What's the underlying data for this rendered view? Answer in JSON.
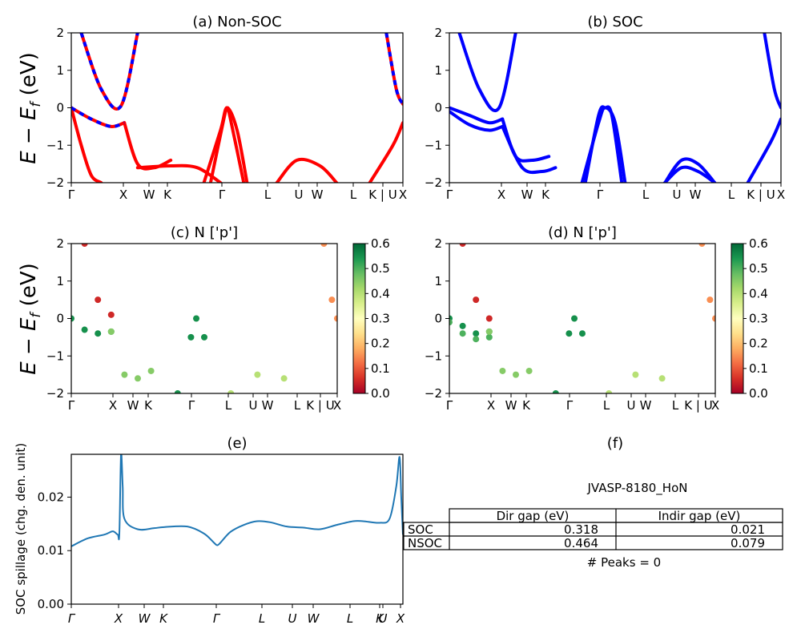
{
  "chart_data": [
    {
      "id": "a",
      "type": "line",
      "title": "(a) Non-SOC",
      "ylabel_html": "E − E_f (eV)",
      "ylabel": {
        "E": "E",
        "minus": "−",
        "sub": "f",
        "unit": "(eV)"
      },
      "ylim": [
        -2,
        2
      ],
      "yticks": [
        "2",
        "1",
        "0",
        "−1",
        "−2"
      ],
      "kpath": [
        "Γ",
        "X",
        "W",
        "K",
        "Γ",
        "L",
        "U",
        "W",
        "L",
        "K | U",
        "X"
      ],
      "series": [
        {
          "color": "#ff0000",
          "style": "solid",
          "bands": [
            {
              "x": [
                0.0,
                0.06,
                0.12,
                0.16
              ],
              "y": [
                0,
                -0.3,
                -0.5,
                -0.4
              ]
            },
            {
              "x": [
                0.16,
                0.2,
                0.25,
                0.3
              ],
              "y": [
                -0.4,
                -1.5,
                -1.6,
                -1.4
              ]
            },
            {
              "x": [
                0.0,
                0.03,
                0.06,
                0.09
              ],
              "y": [
                0,
                -1.0,
                -1.8,
                -2.0
              ]
            },
            {
              "x": [
                0.03,
                0.09,
                0.15,
                0.2
              ],
              "y": [
                2,
                0.5,
                0.05,
                2
              ]
            },
            {
              "x": [
                0.2,
                0.3,
                0.38,
                0.45
              ],
              "y": [
                -1.6,
                -1.55,
                -1.6,
                -2.0
              ]
            },
            {
              "x": [
                0.4,
                0.45,
                0.47,
                0.5,
                0.53
              ],
              "y": [
                -2.0,
                -0.6,
                0.0,
                -0.6,
                -2.0
              ]
            },
            {
              "x": [
                0.42,
                0.46,
                0.47,
                0.48,
                0.52
              ],
              "y": [
                -2,
                -0.3,
                0.0,
                -0.3,
                -2
              ]
            },
            {
              "x": [
                0.62,
                0.68,
                0.75,
                0.8
              ],
              "y": [
                -2,
                -1.4,
                -1.55,
                -2
              ]
            },
            {
              "x": [
                0.9,
                0.97,
                1.0
              ],
              "y": [
                -2,
                -1.0,
                -0.4
              ]
            },
            {
              "x": [
                0.95,
                0.98,
                1.0
              ],
              "y": [
                2,
                0.5,
                0.1
              ]
            }
          ]
        },
        {
          "color": "#0000ff",
          "style": "dashed",
          "bands": [
            {
              "x": [
                0.0,
                0.06,
                0.12,
                0.16
              ],
              "y": [
                0,
                -0.3,
                -0.5,
                -0.4
              ]
            },
            {
              "x": [
                0.03,
                0.09,
                0.15,
                0.2
              ],
              "y": [
                2,
                0.5,
                0.05,
                2
              ]
            },
            {
              "x": [
                0.95,
                0.98,
                1.0
              ],
              "y": [
                2,
                0.5,
                0.1
              ]
            }
          ]
        }
      ]
    },
    {
      "id": "b",
      "type": "line",
      "title": "(b) SOC",
      "ylim": [
        -2,
        2
      ],
      "yticks": [
        "2",
        "1",
        "0",
        "−1",
        "−2"
      ],
      "kpath": [
        "Γ",
        "X",
        "W",
        "K",
        "Γ",
        "L",
        "U",
        "W",
        "L",
        "K | U",
        "X"
      ],
      "series": [
        {
          "color": "#0000ff",
          "style": "solid",
          "bands": [
            {
              "x": [
                0.0,
                0.06,
                0.12,
                0.16
              ],
              "y": [
                0,
                -0.2,
                -0.4,
                -0.3
              ]
            },
            {
              "x": [
                0.0,
                0.06,
                0.12,
                0.16
              ],
              "y": [
                -0.1,
                -0.45,
                -0.6,
                -0.5
              ]
            },
            {
              "x": [
                0.16,
                0.2,
                0.25,
                0.3
              ],
              "y": [
                -0.3,
                -1.3,
                -1.4,
                -1.3
              ]
            },
            {
              "x": [
                0.16,
                0.22,
                0.28,
                0.32
              ],
              "y": [
                -0.5,
                -1.6,
                -1.7,
                -1.6
              ]
            },
            {
              "x": [
                0.03,
                0.09,
                0.15,
                0.2
              ],
              "y": [
                2,
                0.5,
                0.0,
                2
              ]
            },
            {
              "x": [
                0.4,
                0.45,
                0.47,
                0.5,
                0.53
              ],
              "y": [
                -2,
                -0.4,
                0.0,
                -0.4,
                -2
              ]
            },
            {
              "x": [
                0.41,
                0.45,
                0.47,
                0.49,
                0.52
              ],
              "y": [
                -2,
                -0.2,
                0.0,
                -0.2,
                -2
              ]
            },
            {
              "x": [
                0.65,
                0.7,
                0.75,
                0.8
              ],
              "y": [
                -2,
                -1.4,
                -1.5,
                -2
              ]
            },
            {
              "x": [
                0.65,
                0.7,
                0.75,
                0.8
              ],
              "y": [
                -2,
                -1.6,
                -1.7,
                -2
              ]
            },
            {
              "x": [
                0.9,
                0.97,
                1.0
              ],
              "y": [
                -2,
                -0.9,
                -0.3
              ]
            },
            {
              "x": [
                0.95,
                0.98,
                1.0
              ],
              "y": [
                2,
                0.5,
                0.0
              ]
            }
          ]
        }
      ]
    },
    {
      "id": "c",
      "type": "scatter",
      "title": "(c)  N ['p']",
      "ylim": [
        -2,
        2
      ],
      "yticks": [
        "2",
        "1",
        "0",
        "−1",
        "−2"
      ],
      "kpath": [
        "Γ",
        "X",
        "W",
        "K",
        "Γ",
        "L",
        "U",
        "W",
        "L",
        "K | U",
        "X"
      ],
      "colorbar": {
        "min": 0.0,
        "max": 0.6,
        "ticks": [
          "0.6",
          "0.5",
          "0.4",
          "0.3",
          "0.2",
          "0.1",
          "0.0"
        ],
        "colormap": "RdYlGn"
      },
      "points": [
        {
          "x": [
            0.0,
            0.05,
            0.1,
            0.15
          ],
          "y": [
            0,
            -0.3,
            -0.4,
            -0.35
          ],
          "v": 0.55
        },
        {
          "x": [
            0.05,
            0.1,
            0.15
          ],
          "y": [
            2,
            0.5,
            0.1
          ],
          "v": 0.05
        },
        {
          "x": [
            0.15,
            0.2,
            0.25,
            0.3
          ],
          "y": [
            -0.35,
            -1.5,
            -1.6,
            -1.4
          ],
          "v": 0.45
        },
        {
          "x": [
            0.4,
            0.45,
            0.47,
            0.5
          ],
          "y": [
            -2,
            -0.5,
            0.0,
            -0.5
          ],
          "v": 0.55
        },
        {
          "x": [
            0.6,
            0.7,
            0.8
          ],
          "y": [
            -2,
            -1.5,
            -1.6
          ],
          "v": 0.4
        },
        {
          "x": [
            0.95,
            0.98,
            1.0
          ],
          "y": [
            2,
            0.5,
            0.0
          ],
          "v": 0.15
        }
      ]
    },
    {
      "id": "d",
      "type": "scatter",
      "title": "(d) N ['p']",
      "ylim": [
        -2,
        2
      ],
      "yticks": [
        "2",
        "1",
        "0",
        "−1",
        "−2"
      ],
      "kpath": [
        "Γ",
        "X",
        "W",
        "K",
        "Γ",
        "L",
        "U",
        "W",
        "L",
        "K | U",
        "X"
      ],
      "colorbar": {
        "min": 0.0,
        "max": 0.6,
        "ticks": [
          "0.6",
          "0.5",
          "0.4",
          "0.3",
          "0.2",
          "0.1",
          "0.0"
        ],
        "colormap": "RdYlGn"
      },
      "points": [
        {
          "x": [
            0.0,
            0.05,
            0.1,
            0.15
          ],
          "y": [
            0,
            -0.2,
            -0.4,
            -0.35
          ],
          "v": 0.55
        },
        {
          "x": [
            0.0,
            0.05,
            0.1,
            0.15
          ],
          "y": [
            -0.1,
            -0.4,
            -0.55,
            -0.5
          ],
          "v": 0.5
        },
        {
          "x": [
            0.05,
            0.1,
            0.15
          ],
          "y": [
            2,
            0.5,
            0.0
          ],
          "v": 0.05
        },
        {
          "x": [
            0.15,
            0.2,
            0.25,
            0.3
          ],
          "y": [
            -0.35,
            -1.4,
            -1.5,
            -1.4
          ],
          "v": 0.45
        },
        {
          "x": [
            0.4,
            0.45,
            0.47,
            0.5
          ],
          "y": [
            -2,
            -0.4,
            0.0,
            -0.4
          ],
          "v": 0.55
        },
        {
          "x": [
            0.6,
            0.7,
            0.8
          ],
          "y": [
            -2,
            -1.5,
            -1.6
          ],
          "v": 0.4
        },
        {
          "x": [
            0.95,
            0.98,
            1.0
          ],
          "y": [
            2,
            0.5,
            0.0
          ],
          "v": 0.15
        }
      ]
    },
    {
      "id": "e",
      "type": "line",
      "title": "(e)",
      "ylabel": "SOC spillage (chg. den. unit)",
      "ylim": [
        0.0,
        0.028
      ],
      "yticks": [
        {
          "v": 0.0,
          "label": "0.00"
        },
        {
          "v": 0.01,
          "label": "0.01"
        },
        {
          "v": 0.02,
          "label": "0.02"
        }
      ],
      "kpath": [
        "Γ",
        "X",
        "W",
        "K",
        "Γ",
        "L",
        "U",
        "W",
        "L",
        "K",
        "U",
        "X"
      ],
      "series": [
        {
          "color": "#1f77b4",
          "x": [
            0.0,
            0.05,
            0.1,
            0.125,
            0.14,
            0.145,
            0.15,
            0.155,
            0.16,
            0.2,
            0.25,
            0.28,
            0.35,
            0.4,
            0.43,
            0.44,
            0.45,
            0.48,
            0.52,
            0.56,
            0.6,
            0.65,
            0.7,
            0.75,
            0.8,
            0.85,
            0.88,
            0.93,
            0.96,
            0.98,
            0.99,
            0.995,
            1.0
          ],
          "y": [
            0.0108,
            0.0123,
            0.013,
            0.0136,
            0.013,
            0.0133,
            0.028,
            0.022,
            0.016,
            0.014,
            0.0142,
            0.0144,
            0.0145,
            0.0132,
            0.0115,
            0.011,
            0.0115,
            0.0135,
            0.0148,
            0.0155,
            0.0153,
            0.0145,
            0.0143,
            0.014,
            0.0148,
            0.0155,
            0.0155,
            0.0152,
            0.016,
            0.022,
            0.0275,
            0.02,
            0.013
          ]
        }
      ]
    }
  ],
  "panel_f": {
    "title": "(f)",
    "material": "JVASP-8180_HoN",
    "table": {
      "headers": [
        "Dir gap (eV)",
        "Indir gap (eV)"
      ],
      "rows": [
        {
          "label": "SOC",
          "dir": "0.318",
          "indir": "0.021"
        },
        {
          "label": "NSOC",
          "dir": "0.464",
          "indir": "0.079"
        }
      ]
    },
    "peaks": "# Peaks = 0"
  }
}
